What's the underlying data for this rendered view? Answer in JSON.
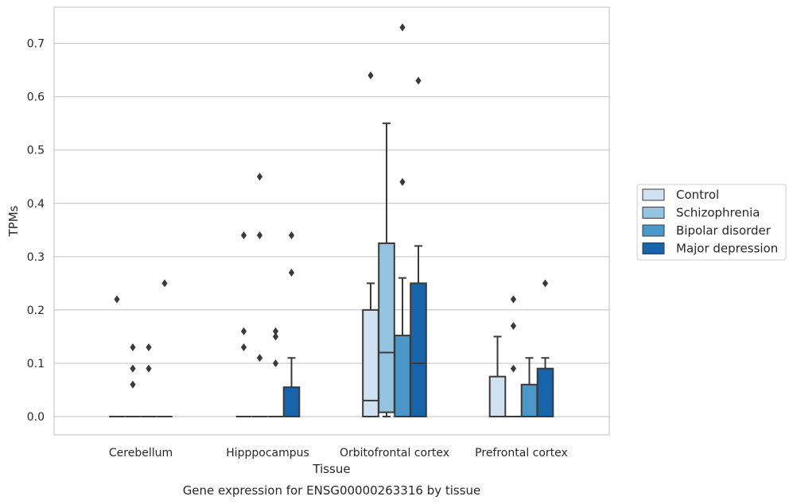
{
  "chart_data": {
    "type": "box",
    "title": "Gene expression for ENSG00000263316 by tissue",
    "xlabel": "Tissue",
    "ylabel": "TPMs",
    "categories": [
      "Cerebellum",
      "Hipppocampus",
      "Orbitofrontal cortex",
      "Prefrontal cortex"
    ],
    "ylim": [
      -0.035,
      0.77
    ],
    "yticks": [
      "0.0",
      "0.1",
      "0.2",
      "0.3",
      "0.4",
      "0.5",
      "0.6",
      "0.7"
    ],
    "grid": "horizontal",
    "legend_position": "right",
    "series": [
      {
        "name": "Control",
        "color": "#d0e1f2",
        "boxes": [
          {
            "q1": 0,
            "median": 0,
            "q3": 0,
            "whislo": 0,
            "whishi": 0,
            "fliers": [
              0.22
            ]
          },
          {
            "q1": 0,
            "median": 0,
            "q3": 0,
            "whislo": 0,
            "whishi": 0,
            "fliers": [
              0.34,
              0.16,
              0.13
            ]
          },
          {
            "q1": 0,
            "median": 0.03,
            "q3": 0.2,
            "whislo": 0,
            "whishi": 0.25,
            "fliers": [
              0.64
            ]
          },
          {
            "q1": 0,
            "median": 0,
            "q3": 0.075,
            "whislo": 0,
            "whishi": 0.15,
            "fliers": []
          }
        ]
      },
      {
        "name": "Schizophrenia",
        "color": "#94c4df",
        "boxes": [
          {
            "q1": 0,
            "median": 0,
            "q3": 0,
            "whislo": 0,
            "whishi": 0,
            "fliers": [
              0.13,
              0.09,
              0.06
            ]
          },
          {
            "q1": 0,
            "median": 0,
            "q3": 0,
            "whislo": 0,
            "whishi": 0,
            "fliers": [
              0.45,
              0.34,
              0.11
            ]
          },
          {
            "q1": 0.008,
            "median": 0.12,
            "q3": 0.325,
            "whislo": 0,
            "whishi": 0.55,
            "fliers": []
          },
          {
            "q1": 0,
            "median": 0,
            "q3": 0,
            "whislo": 0,
            "whishi": 0,
            "fliers": [
              0.22,
              0.17,
              0.09
            ]
          }
        ]
      },
      {
        "name": "Bipolar disorder",
        "color": "#4a98c9",
        "boxes": [
          {
            "q1": 0,
            "median": 0,
            "q3": 0,
            "whislo": 0,
            "whishi": 0,
            "fliers": [
              0.13,
              0.09
            ]
          },
          {
            "q1": 0,
            "median": 0,
            "q3": 0,
            "whislo": 0,
            "whishi": 0,
            "fliers": [
              0.16,
              0.15,
              0.1
            ]
          },
          {
            "q1": 0,
            "median": 0,
            "q3": 0.152,
            "whislo": 0,
            "whishi": 0.26,
            "fliers": [
              0.73,
              0.44
            ]
          },
          {
            "q1": 0,
            "median": 0,
            "q3": 0.06,
            "whislo": 0,
            "whishi": 0.11,
            "fliers": []
          }
        ]
      },
      {
        "name": "Major depression",
        "color": "#1764ab",
        "boxes": [
          {
            "q1": 0,
            "median": 0,
            "q3": 0,
            "whislo": 0,
            "whishi": 0,
            "fliers": [
              0.25
            ]
          },
          {
            "q1": 0,
            "median": 0,
            "q3": 0.055,
            "whislo": 0,
            "whishi": 0.11,
            "fliers": [
              0.34,
              0.27
            ]
          },
          {
            "q1": 0,
            "median": 0.1,
            "q3": 0.25,
            "whislo": 0,
            "whishi": 0.32,
            "fliers": [
              0.63
            ]
          },
          {
            "q1": 0,
            "median": 0,
            "q3": 0.09,
            "whislo": 0,
            "whishi": 0.11,
            "fliers": [
              0.25
            ]
          }
        ]
      }
    ]
  }
}
